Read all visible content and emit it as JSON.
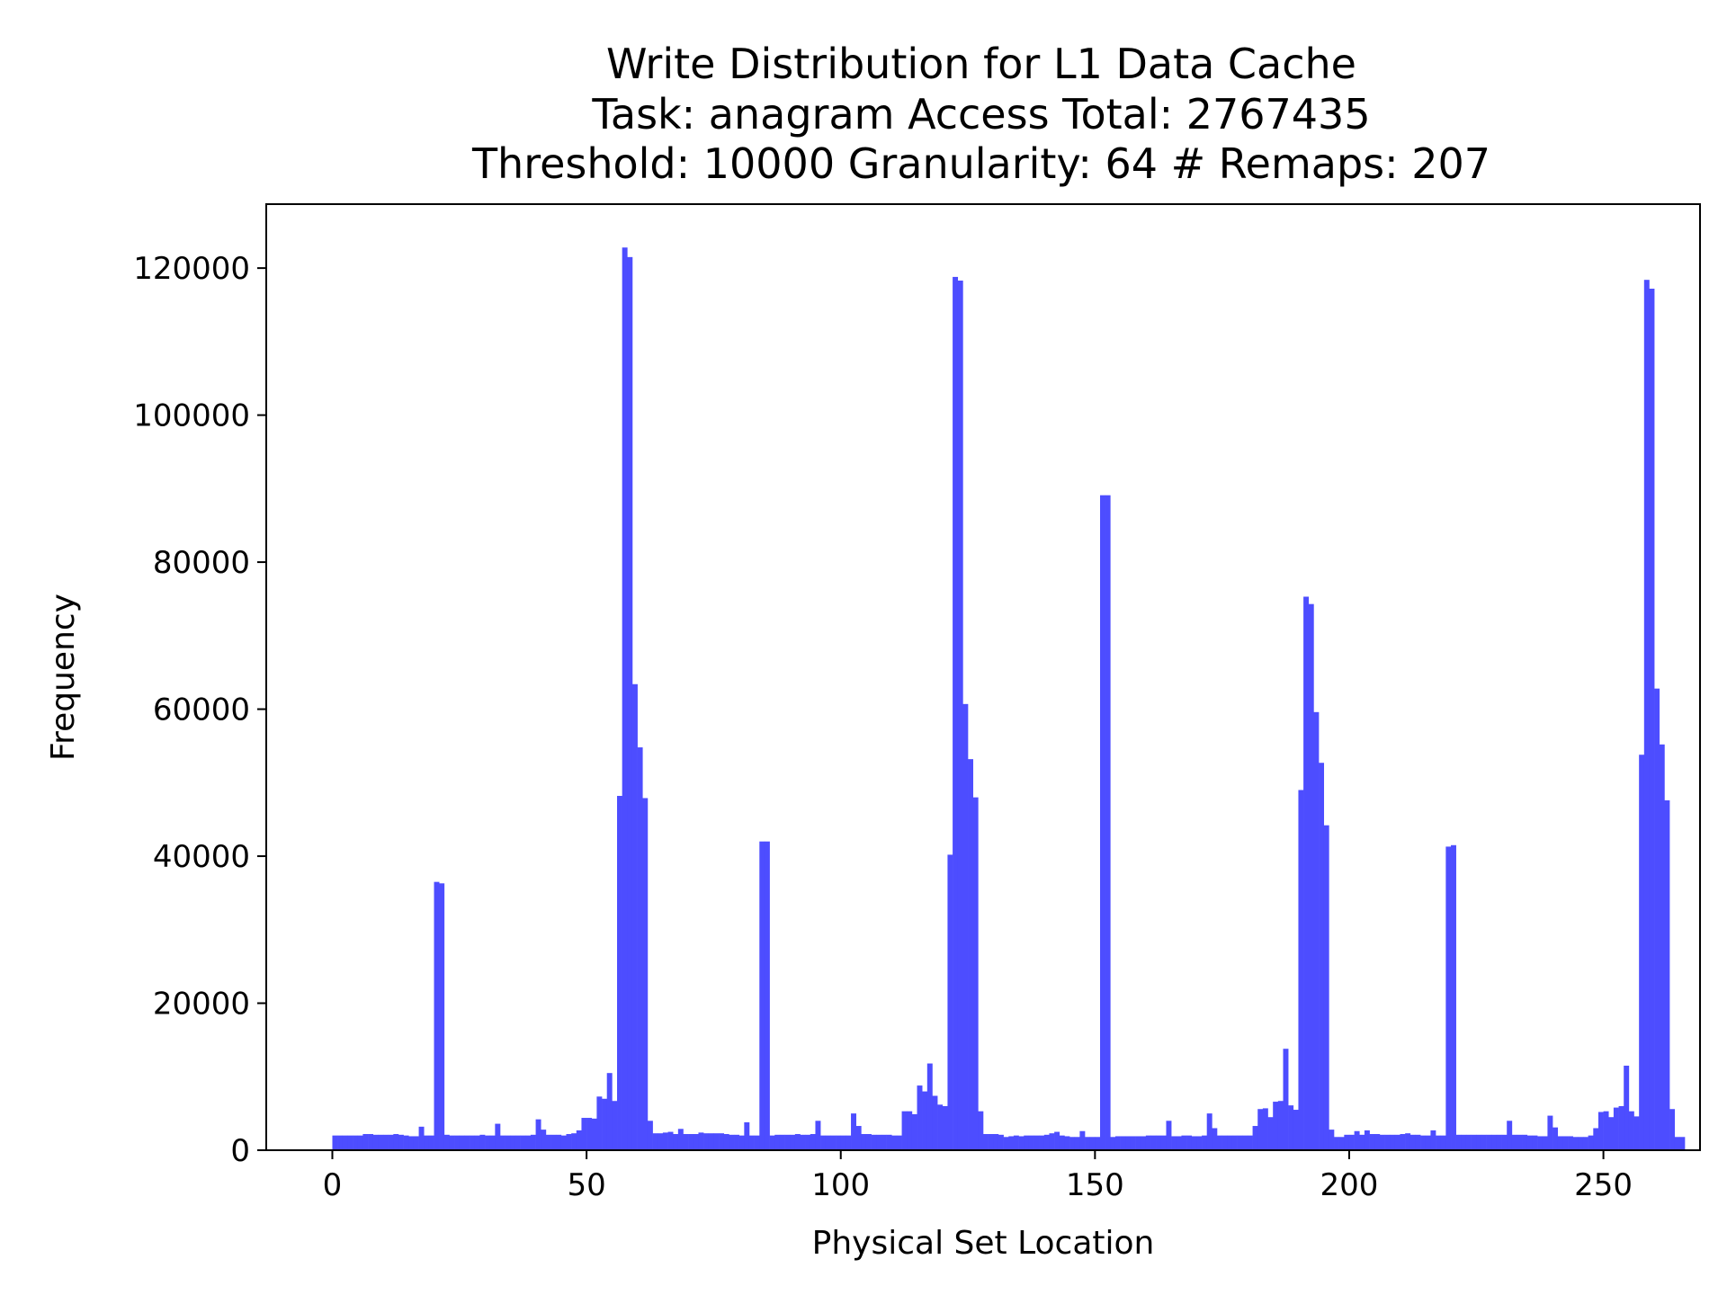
{
  "chart_data": {
    "type": "bar",
    "title_lines": [
      "Write Distribution for L1 Data Cache",
      "Task: anagram Access Total: 2767435",
      "Threshold: 10000 Granularity: 64 # Remaps: 207"
    ],
    "xlabel": "Physical Set Location",
    "ylabel": "Frequency",
    "xlim": [
      -13,
      269
    ],
    "ylim": [
      0,
      128700
    ],
    "xticks": [
      0,
      50,
      100,
      150,
      200,
      250
    ],
    "yticks": [
      0,
      20000,
      40000,
      60000,
      80000,
      100000,
      120000
    ],
    "grid": false,
    "bar_color": "#4d4dff",
    "bin_width": 1,
    "x_start": 0,
    "values": [
      2000,
      2000,
      2000,
      2000,
      2000,
      2000,
      2200,
      2200,
      2100,
      2100,
      2100,
      2100,
      2200,
      2100,
      2000,
      1900,
      1900,
      3200,
      2000,
      2000,
      36500,
      36300,
      2100,
      2000,
      2000,
      2000,
      2000,
      2000,
      2000,
      2100,
      2000,
      2000,
      3600,
      2000,
      2000,
      2000,
      2000,
      2000,
      2000,
      2100,
      4200,
      2800,
      2100,
      2100,
      2100,
      2000,
      2200,
      2300,
      2700,
      4400,
      4400,
      4300,
      7300,
      7000,
      10500,
      6700,
      48200,
      122800,
      121500,
      63400,
      54800,
      47900,
      4000,
      2300,
      2300,
      2400,
      2500,
      2200,
      2900,
      2200,
      2200,
      2200,
      2400,
      2300,
      2300,
      2300,
      2300,
      2200,
      2100,
      2100,
      2000,
      3800,
      2000,
      2000,
      42000,
      42000,
      2000,
      2100,
      2100,
      2100,
      2100,
      2200,
      2100,
      2100,
      2200,
      4000,
      2000,
      2000,
      2000,
      2000,
      2000,
      2000,
      5000,
      3300,
      2200,
      2200,
      2100,
      2100,
      2100,
      2100,
      2000,
      2000,
      5300,
      5300,
      4900,
      8800,
      8000,
      11800,
      7400,
      6200,
      6000,
      40200,
      118800,
      118300,
      60700,
      53200,
      48000,
      5300,
      2200,
      2200,
      2200,
      2100,
      1800,
      1900,
      2000,
      1900,
      2000,
      2000,
      2000,
      2000,
      2100,
      2300,
      2500,
      2000,
      1900,
      1800,
      1800,
      2600,
      1800,
      1800,
      1800,
      89100,
      89100,
      1800,
      1900,
      1900,
      1900,
      1900,
      1900,
      1900,
      2000,
      2000,
      2000,
      2000,
      4000,
      1900,
      1900,
      2000,
      2000,
      1900,
      1900,
      2000,
      5000,
      3000,
      2000,
      2000,
      2000,
      2000,
      2000,
      2000,
      2000,
      3300,
      5600,
      5700,
      4500,
      6600,
      6700,
      13800,
      6100,
      5500,
      49000,
      75300,
      74300,
      59600,
      52700,
      44200,
      2800,
      1800,
      1800,
      2100,
      2100,
      2600,
      2100,
      2700,
      2200,
      2200,
      2100,
      2100,
      2100,
      2100,
      2200,
      2300,
      2100,
      2100,
      2000,
      2000,
      2700,
      2000,
      2000,
      41300,
      41500,
      2100,
      2100,
      2100,
      2100,
      2100,
      2100,
      2100,
      2100,
      2100,
      2100,
      4000,
      2100,
      2100,
      2100,
      2000,
      2000,
      1900,
      1900,
      4700,
      3100,
      1900,
      1900,
      1900,
      1800,
      1800,
      1800,
      2000,
      3000,
      5200,
      5300,
      4500,
      5800,
      6000,
      11500,
      5300,
      4600,
      53800,
      118400,
      117200,
      62800,
      55200,
      47600,
      5600,
      1800,
      1800
    ]
  }
}
